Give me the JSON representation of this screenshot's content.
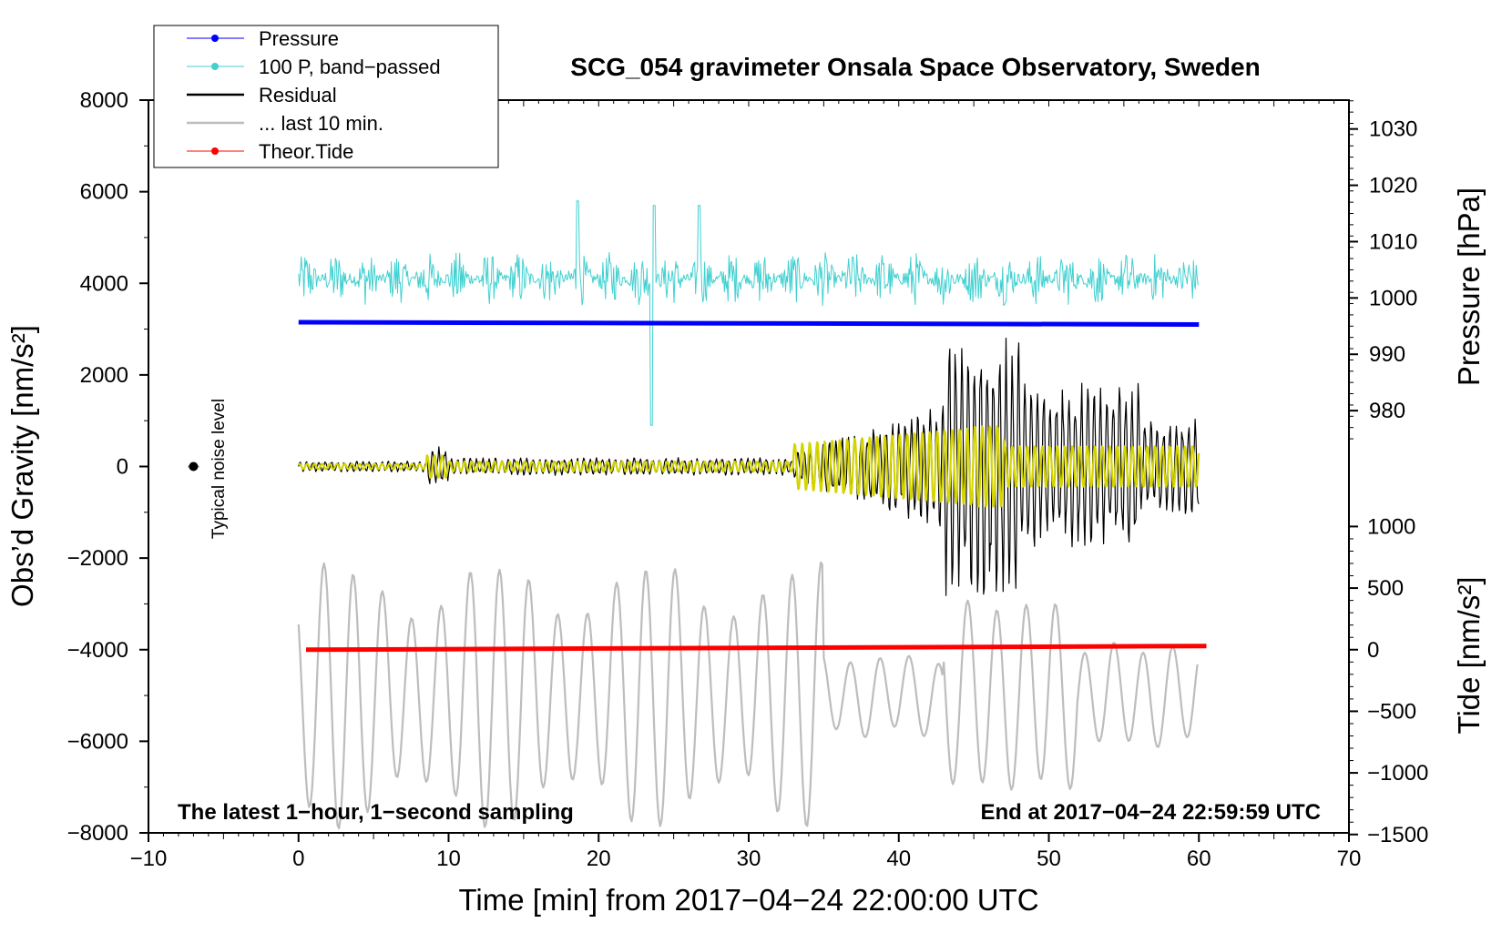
{
  "chart_data": {
    "type": "line",
    "title": "SCG_054 gravimeter Onsala Space Observatory, Sweden",
    "xlabel": "Time [min] from 2017−04−24 22:00:00 UTC",
    "ylabel_left": "Obs’d Gravity [nm/s²]",
    "ylabel_right_top": "Pressure [hPa]",
    "ylabel_right_bottom": "Tide [nm/s²]",
    "xlim": [
      -10,
      70
    ],
    "ylim_left": [
      -8000,
      8000
    ],
    "x_ticks": [
      -10,
      0,
      10,
      20,
      30,
      40,
      50,
      60,
      70
    ],
    "x_tick_labels": [
      "−10",
      "0",
      "10",
      "20",
      "30",
      "40",
      "50",
      "60",
      "70"
    ],
    "left_ticks": [
      -8000,
      -6000,
      -4000,
      -2000,
      0,
      2000,
      4000,
      6000,
      8000
    ],
    "left_tick_labels": [
      "−8000",
      "−6000",
      "−4000",
      "−2000",
      "0",
      "2000",
      "4000",
      "6000",
      "8000"
    ],
    "pressure_axis": {
      "ticks": [
        980,
        990,
        1000,
        1010,
        1020,
        1030
      ],
      "map": {
        "hPa_at_y0": 1030.0,
        "hPa_per_unit": 0.0052
      }
    },
    "tide_axis": {
      "ticks": [
        1000,
        500,
        0,
        -500,
        -1000,
        -1500
      ],
      "tick_labels": [
        "1000",
        "500",
        "0",
        "−500",
        "−1000",
        "−1500"
      ],
      "map": {
        "tide_at_y0": 3200,
        "tide_per_unit": 0.8
      }
    },
    "legend": [
      {
        "label": "Pressure",
        "color": "#0000ff",
        "marker": true
      },
      {
        "label": "100 P, band−passed",
        "color": "#40d0d0",
        "marker": true
      },
      {
        "label": "Residual",
        "color": "#000000",
        "marker": false
      },
      {
        "label": "... last 10 min.",
        "color": "#bdbdbd",
        "marker": false
      },
      {
        "label": "Theor.Tide",
        "color": "#ff0000",
        "marker": true
      }
    ],
    "series": [
      {
        "name": "Pressure",
        "color": "#0000ff",
        "x_range": [
          0,
          60
        ],
        "description_values": {
          "start": 3150,
          "end": 3100
        }
      },
      {
        "name": "100 P, band−passed",
        "color": "#40d0d0",
        "x_range": [
          0,
          60
        ],
        "baseline": 4100,
        "amplitude": 500
      },
      {
        "name": "Residual",
        "color": "#000000",
        "x_range": [
          0,
          60
        ],
        "baseline": 0,
        "peak_amplitude": 3300
      },
      {
        "name": "... last 10 min.",
        "color": "#bdbdbd",
        "x_range": [
          0,
          60
        ],
        "baseline": -5000,
        "amplitude": 2300
      },
      {
        "name": "Band-passed residual",
        "color": "#d4d400",
        "x_range": [
          0,
          60
        ],
        "baseline": 0,
        "peak_amplitude": 900
      },
      {
        "name": "Theor.Tide",
        "color": "#ff0000",
        "x_range": [
          0.5,
          60.5
        ],
        "values": {
          "start": -4000,
          "end": -3920
        }
      }
    ],
    "noise_marker": {
      "x": -7,
      "y": 0,
      "label": "Typical noise level"
    },
    "footer_left": "The latest 1−hour, 1−second sampling",
    "footer_right": "End at 2017−04−24 22:59:59 UTC"
  }
}
